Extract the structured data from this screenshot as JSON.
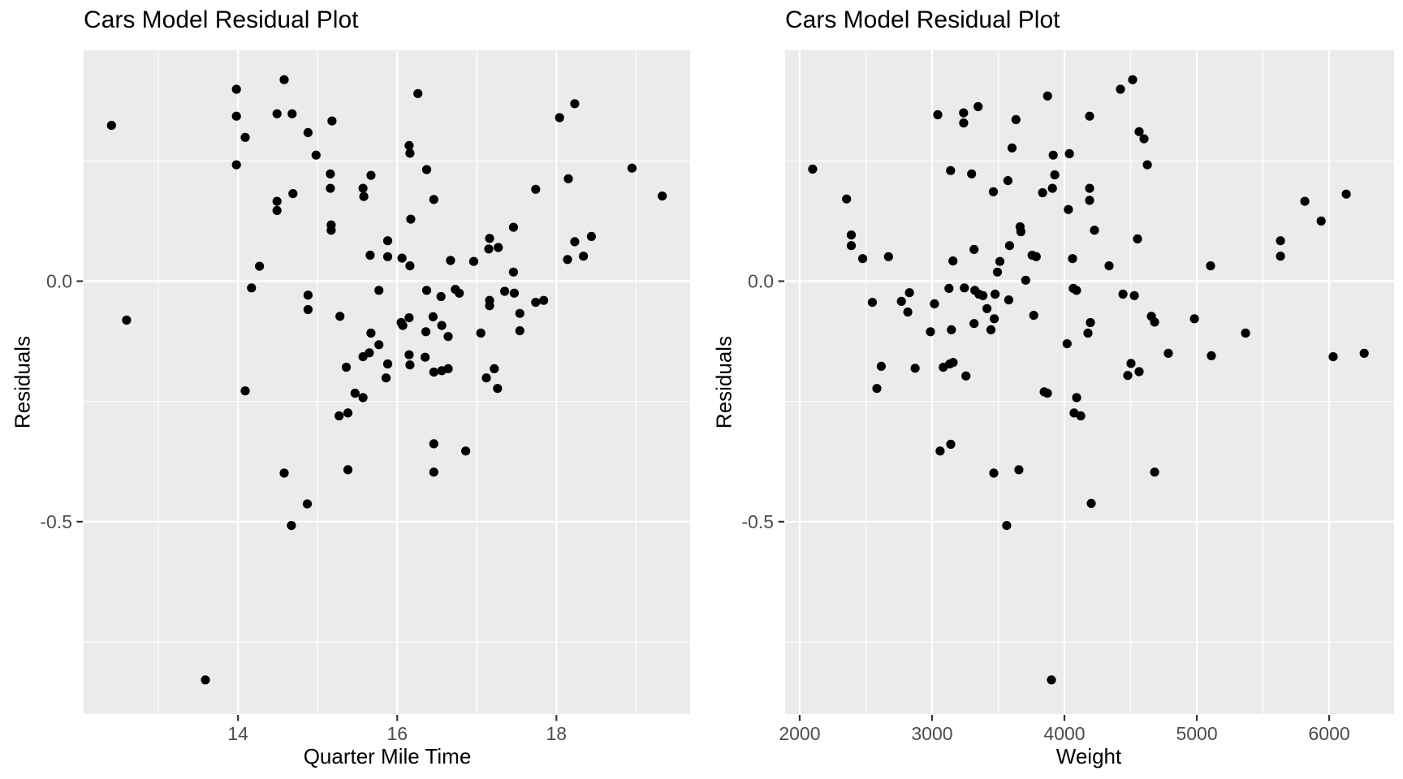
{
  "style": {
    "page_bg": "#FFFFFF",
    "panel_bg": "#EBEBEB",
    "grid_color": "#FFFFFF",
    "point_color": "#000000",
    "tick_label_color": "#4D4D4D",
    "tick_mark_color": "#333333",
    "title_color": "#000000",
    "point_radius": 5.6
  },
  "chart_data": [
    {
      "type": "scatter",
      "title": "Cars Model Residual Plot",
      "xlabel": "Quarter Mile Time",
      "ylabel": "Residuals",
      "xlim": [
        12.06,
        19.68
      ],
      "ylim": [
        -0.9,
        0.48
      ],
      "grid": true,
      "legend": "none",
      "x_ticks": {
        "values": [
          14,
          16,
          18
        ],
        "labels": [
          "14",
          "16",
          "18"
        ]
      },
      "x_minor": [
        13,
        15,
        17,
        19
      ],
      "y_ticks": {
        "values": [
          0.0,
          -0.5
        ],
        "labels": [
          "0.0",
          "-0.5"
        ]
      },
      "y_minor": [
        0.25,
        -0.25,
        -0.75
      ],
      "points": [
        [
          12.41,
          0.324
        ],
        [
          12.6,
          -0.081
        ],
        [
          13.59,
          -0.829
        ],
        [
          13.98,
          0.399
        ],
        [
          13.98,
          0.343
        ],
        [
          13.98,
          0.242
        ],
        [
          14.09,
          0.299
        ],
        [
          14.09,
          -0.228
        ],
        [
          14.17,
          -0.014
        ],
        [
          14.27,
          0.031
        ],
        [
          14.49,
          0.348
        ],
        [
          14.49,
          0.166
        ],
        [
          14.49,
          0.147
        ],
        [
          14.58,
          0.419
        ],
        [
          14.58,
          -0.399
        ],
        [
          14.67,
          -0.508
        ],
        [
          14.68,
          0.348
        ],
        [
          14.69,
          0.182
        ],
        [
          14.88,
          0.309
        ],
        [
          14.88,
          -0.029
        ],
        [
          14.88,
          -0.059
        ],
        [
          14.87,
          -0.463
        ],
        [
          14.98,
          0.262
        ],
        [
          15.16,
          0.223
        ],
        [
          15.16,
          0.193
        ],
        [
          15.17,
          0.117
        ],
        [
          15.17,
          0.106
        ],
        [
          15.18,
          0.333
        ],
        [
          15.28,
          -0.073
        ],
        [
          15.27,
          -0.28
        ],
        [
          15.36,
          -0.179
        ],
        [
          15.38,
          -0.274
        ],
        [
          15.38,
          -0.392
        ],
        [
          15.47,
          -0.233
        ],
        [
          15.57,
          0.193
        ],
        [
          15.58,
          0.176
        ],
        [
          15.57,
          -0.157
        ],
        [
          15.57,
          -0.242
        ],
        [
          15.65,
          -0.149
        ],
        [
          15.66,
          0.054
        ],
        [
          15.67,
          0.22
        ],
        [
          15.67,
          -0.108
        ],
        [
          15.77,
          -0.019
        ],
        [
          15.77,
          -0.132
        ],
        [
          15.88,
          0.084
        ],
        [
          15.88,
          0.051
        ],
        [
          15.88,
          -0.172
        ],
        [
          15.86,
          -0.201
        ],
        [
          16.05,
          -0.086
        ],
        [
          16.06,
          0.048
        ],
        [
          16.07,
          -0.092
        ],
        [
          16.15,
          0.282
        ],
        [
          16.15,
          -0.076
        ],
        [
          16.15,
          -0.153
        ],
        [
          16.16,
          0.266
        ],
        [
          16.16,
          0.032
        ],
        [
          16.16,
          -0.174
        ],
        [
          16.17,
          0.129
        ],
        [
          16.26,
          0.39
        ],
        [
          16.35,
          -0.158
        ],
        [
          16.36,
          -0.105
        ],
        [
          16.37,
          0.232
        ],
        [
          16.37,
          -0.019
        ],
        [
          16.45,
          -0.074
        ],
        [
          16.46,
          0.17
        ],
        [
          16.46,
          -0.189
        ],
        [
          16.46,
          -0.338
        ],
        [
          16.46,
          -0.397
        ],
        [
          16.55,
          -0.032
        ],
        [
          16.56,
          -0.092
        ],
        [
          16.56,
          -0.186
        ],
        [
          16.64,
          -0.115
        ],
        [
          16.64,
          -0.182
        ],
        [
          16.67,
          0.043
        ],
        [
          16.73,
          -0.017
        ],
        [
          16.78,
          -0.025
        ],
        [
          16.86,
          -0.353
        ],
        [
          16.96,
          0.041
        ],
        [
          17.05,
          -0.108
        ],
        [
          17.12,
          -0.201
        ],
        [
          17.15,
          0.067
        ],
        [
          17.16,
          0.089
        ],
        [
          17.16,
          -0.04
        ],
        [
          17.16,
          -0.051
        ],
        [
          17.22,
          -0.182
        ],
        [
          17.26,
          -0.223
        ],
        [
          17.27,
          0.07
        ],
        [
          17.35,
          -0.021
        ],
        [
          17.46,
          0.112
        ],
        [
          17.46,
          0.019
        ],
        [
          17.47,
          -0.025
        ],
        [
          17.54,
          -0.067
        ],
        [
          17.54,
          -0.103
        ],
        [
          17.74,
          0.191
        ],
        [
          17.74,
          -0.044
        ],
        [
          17.84,
          -0.04
        ],
        [
          18.04,
          0.34
        ],
        [
          18.14,
          0.045
        ],
        [
          18.15,
          0.213
        ],
        [
          18.23,
          0.369
        ],
        [
          18.23,
          0.082
        ],
        [
          18.34,
          0.052
        ],
        [
          18.44,
          0.093
        ],
        [
          18.95,
          0.235
        ],
        [
          19.33,
          0.177
        ]
      ]
    },
    {
      "type": "scatter",
      "title": "Cars Model Residual Plot",
      "xlabel": "Weight",
      "ylabel": "Residuals",
      "xlim": [
        1890,
        6490
      ],
      "ylim": [
        -0.9,
        0.48
      ],
      "grid": true,
      "legend": "none",
      "x_ticks": {
        "values": [
          2000,
          3000,
          4000,
          5000,
          6000
        ],
        "labels": [
          "2000",
          "3000",
          "4000",
          "5000",
          "6000"
        ]
      },
      "x_minor": [
        2500,
        3500,
        4500,
        5500
      ],
      "y_ticks": {
        "values": [
          0.0,
          -0.5
        ],
        "labels": [
          "0.0",
          "-0.5"
        ]
      },
      "y_minor": [
        0.25,
        -0.25,
        -0.75
      ],
      "points": [
        [
          2098,
          0.233
        ],
        [
          2354,
          0.171
        ],
        [
          2390,
          0.096
        ],
        [
          2390,
          0.074
        ],
        [
          2476,
          0.047
        ],
        [
          2549,
          -0.044
        ],
        [
          2583,
          -0.223
        ],
        [
          2616,
          -0.177
        ],
        [
          2671,
          0.051
        ],
        [
          2768,
          -0.042
        ],
        [
          2817,
          -0.064
        ],
        [
          2829,
          -0.024
        ],
        [
          2872,
          -0.181
        ],
        [
          2988,
          -0.105
        ],
        [
          3018,
          -0.047
        ],
        [
          3043,
          0.346
        ],
        [
          3061,
          -0.353
        ],
        [
          3085,
          -0.179
        ],
        [
          3128,
          -0.015
        ],
        [
          3134,
          -0.172
        ],
        [
          3140,
          0.23
        ],
        [
          3141,
          -0.339
        ],
        [
          3146,
          -0.101
        ],
        [
          3158,
          0.042
        ],
        [
          3159,
          -0.169
        ],
        [
          3238,
          0.35
        ],
        [
          3239,
          0.329
        ],
        [
          3244,
          -0.014
        ],
        [
          3256,
          -0.197
        ],
        [
          3299,
          0.223
        ],
        [
          3317,
          0.066
        ],
        [
          3317,
          -0.088
        ],
        [
          3323,
          -0.019
        ],
        [
          3348,
          0.363
        ],
        [
          3354,
          -0.027
        ],
        [
          3384,
          -0.03
        ],
        [
          3415,
          -0.057
        ],
        [
          3445,
          -0.101
        ],
        [
          3463,
          0.186
        ],
        [
          3466,
          -0.399
        ],
        [
          3470,
          -0.078
        ],
        [
          3476,
          -0.027
        ],
        [
          3494,
          0.019
        ],
        [
          3512,
          0.041
        ],
        [
          3564,
          -0.508
        ],
        [
          3573,
          0.209
        ],
        [
          3579,
          -0.039
        ],
        [
          3585,
          0.074
        ],
        [
          3604,
          0.277
        ],
        [
          3634,
          0.336
        ],
        [
          3656,
          -0.392
        ],
        [
          3665,
          0.113
        ],
        [
          3671,
          0.103
        ],
        [
          3707,
          0.002
        ],
        [
          3756,
          0.054
        ],
        [
          3768,
          -0.071
        ],
        [
          3787,
          0.051
        ],
        [
          3835,
          0.184
        ],
        [
          3847,
          -0.23
        ],
        [
          3871,
          -0.233
        ],
        [
          3872,
          0.385
        ],
        [
          3902,
          -0.829
        ],
        [
          3909,
          0.193
        ],
        [
          3915,
          0.262
        ],
        [
          3927,
          0.221
        ],
        [
          4020,
          -0.13
        ],
        [
          4030,
          0.149
        ],
        [
          4037,
          0.265
        ],
        [
          4061,
          0.047
        ],
        [
          4067,
          -0.015
        ],
        [
          4073,
          -0.274
        ],
        [
          4091,
          -0.019
        ],
        [
          4092,
          -0.242
        ],
        [
          4123,
          -0.28
        ],
        [
          4178,
          -0.108
        ],
        [
          4190,
          0.343
        ],
        [
          4190,
          0.193
        ],
        [
          4190,
          0.168
        ],
        [
          4196,
          -0.086
        ],
        [
          4202,
          -0.462
        ],
        [
          4227,
          0.106
        ],
        [
          4337,
          0.032
        ],
        [
          4423,
          0.399
        ],
        [
          4442,
          -0.027
        ],
        [
          4478,
          -0.196
        ],
        [
          4503,
          -0.171
        ],
        [
          4515,
          0.419
        ],
        [
          4528,
          -0.03
        ],
        [
          4552,
          0.088
        ],
        [
          4564,
          0.311
        ],
        [
          4564,
          -0.188
        ],
        [
          4601,
          0.296
        ],
        [
          4626,
          0.242
        ],
        [
          4657,
          -0.073
        ],
        [
          4681,
          -0.085
        ],
        [
          4681,
          -0.397
        ],
        [
          4785,
          -0.15
        ],
        [
          4982,
          -0.078
        ],
        [
          5104,
          0.032
        ],
        [
          5110,
          -0.155
        ],
        [
          5368,
          -0.108
        ],
        [
          5632,
          0.084
        ],
        [
          5632,
          0.052
        ],
        [
          5816,
          0.166
        ],
        [
          5939,
          0.125
        ],
        [
          6030,
          -0.157
        ],
        [
          6129,
          0.181
        ],
        [
          6264,
          -0.15
        ]
      ]
    }
  ]
}
